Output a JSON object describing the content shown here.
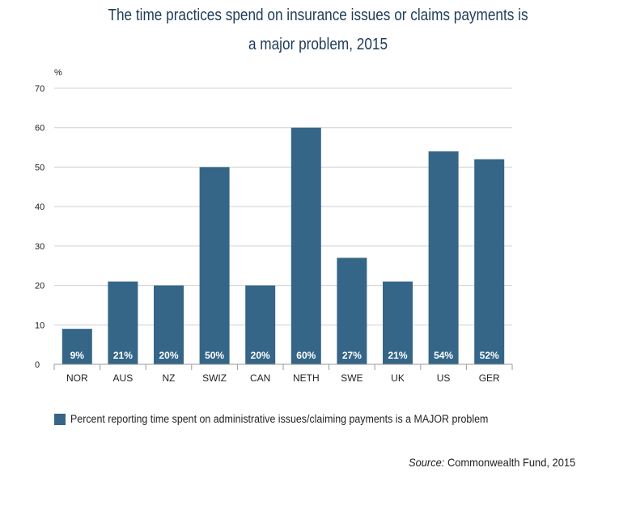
{
  "chart_data": {
    "type": "bar",
    "title_line1": "The time practices spend on insurance issues or claims payments is",
    "title_line2": "a major problem, 2015",
    "ylabel": "%",
    "ylim": [
      0,
      70
    ],
    "yticks": [
      0,
      10,
      20,
      30,
      40,
      50,
      60,
      70
    ],
    "categories": [
      "NOR",
      "AUS",
      "NZ",
      "SWIZ",
      "CAN",
      "NETH",
      "SWE",
      "UK",
      "US",
      "GER"
    ],
    "series": [
      {
        "name": "Percent reporting time spent on administrative issues/claiming payments is a MAJOR problem",
        "values": [
          9,
          21,
          20,
          50,
          20,
          60,
          27,
          21,
          54,
          52
        ],
        "data_labels": [
          "9%",
          "21%",
          "20%",
          "50%",
          "20%",
          "60%",
          "27%",
          "21%",
          "54%",
          "52%"
        ],
        "color": "#356687"
      }
    ],
    "grid": true,
    "legend_position": "bottom-left"
  },
  "source": {
    "label": "Source:",
    "text": "Commonwealth Fund, 2015"
  },
  "colors": {
    "bar": "#356687",
    "grid": "#d0d0d0",
    "title": "#1f3b59"
  }
}
